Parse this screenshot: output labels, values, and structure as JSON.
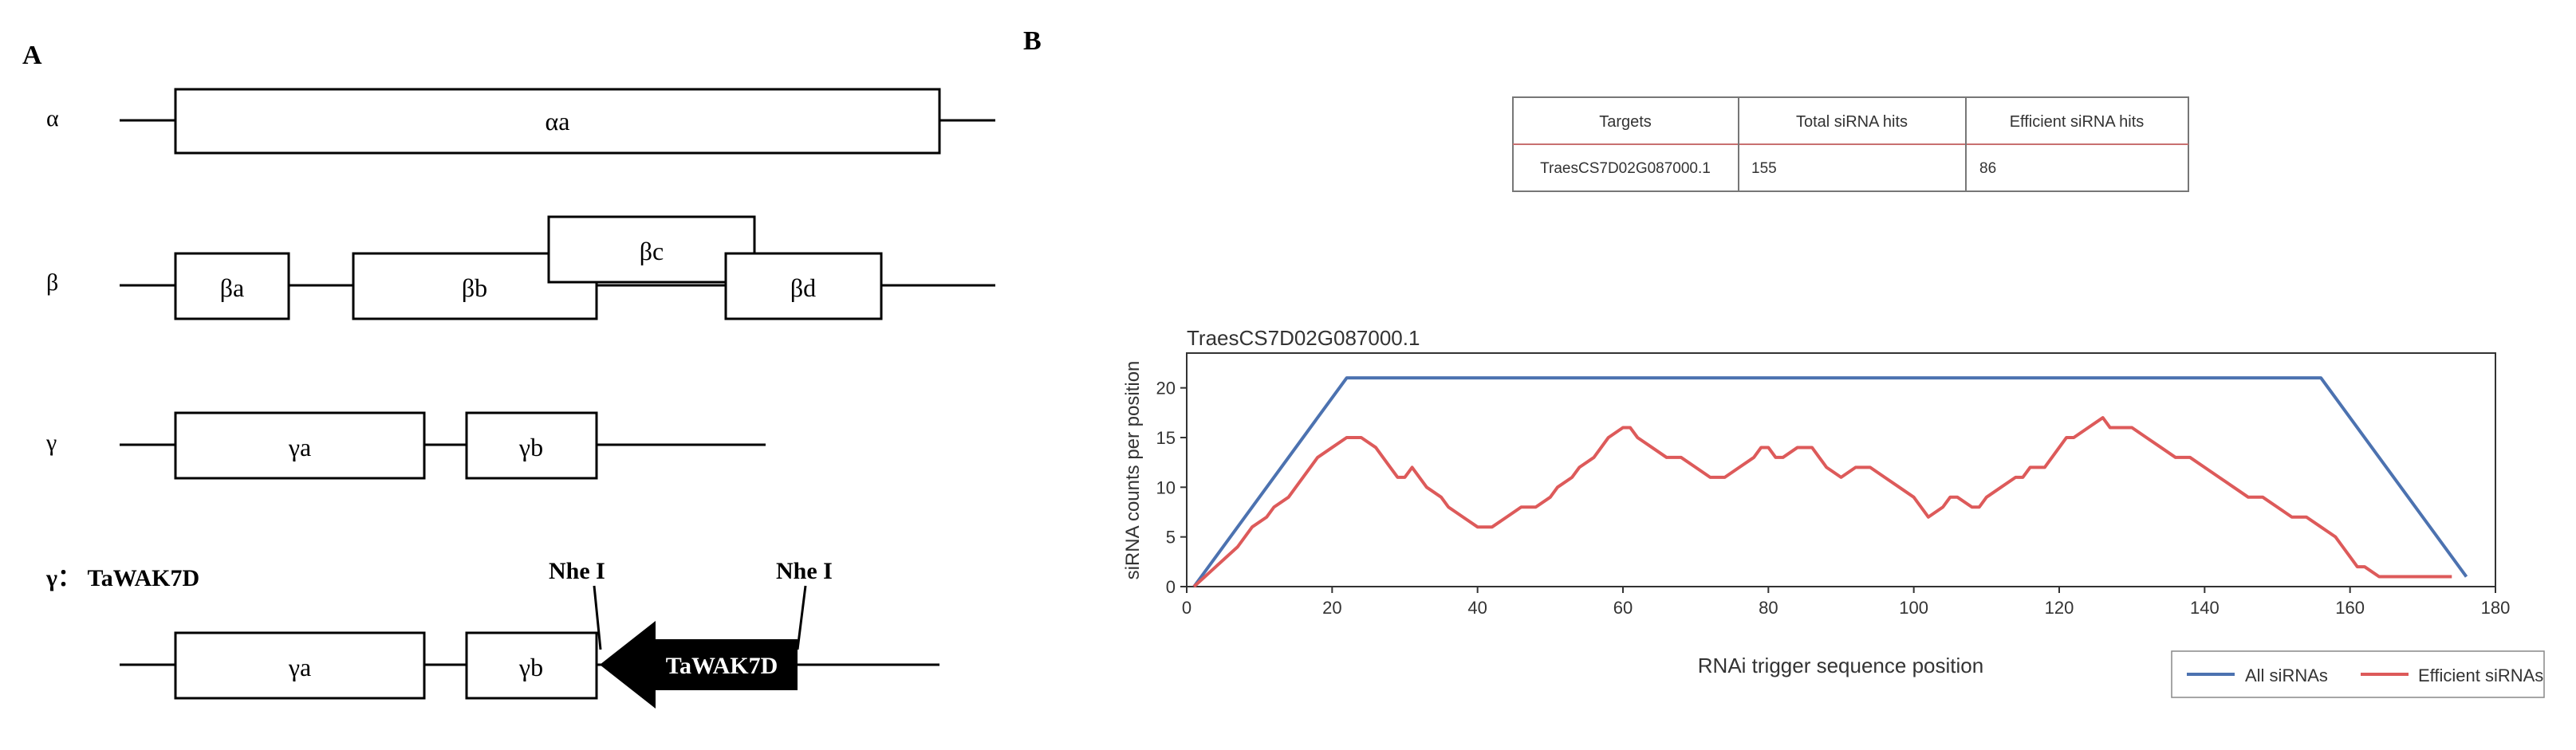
{
  "panel_a": {
    "label": "A",
    "rows": [
      {
        "name": "α",
        "boxes": [
          "αa"
        ]
      },
      {
        "name": "β",
        "boxes": [
          "βa",
          "βb",
          "βc",
          "βd"
        ]
      },
      {
        "name": "γ",
        "boxes": [
          "γa",
          "γb"
        ]
      },
      {
        "name": "γ： TaWAK7D",
        "boxes": [
          "γa",
          "γb"
        ]
      }
    ],
    "site_label_1": "Nhe I",
    "site_label_2": "Nhe I",
    "arrow_label": "TaWAK7D"
  },
  "panel_b": {
    "label": "B",
    "table": {
      "headers": [
        "Targets",
        "Total siRNA hits",
        "Efficient siRNA hits"
      ],
      "rows": [
        [
          "TraesCS7D02G087000.1",
          "155",
          "86"
        ]
      ]
    }
  },
  "chart_data": {
    "type": "line",
    "title": "TraesCS7D02G087000.1",
    "xlabel": "RNAi trigger sequence position",
    "ylabel": "siRNA counts per position",
    "xlim": [
      0,
      180
    ],
    "ylim": [
      0,
      23.5
    ],
    "xticks": [
      0,
      20,
      40,
      60,
      80,
      100,
      120,
      140,
      160,
      180
    ],
    "yticks": [
      0,
      5,
      10,
      15,
      20
    ],
    "grid": false,
    "legend_position": "bottom-right",
    "series": [
      {
        "name": "All siRNAs",
        "color": "#4c72b0",
        "x": [
          1,
          22,
          156,
          176
        ],
        "y": [
          0,
          21,
          21,
          1
        ]
      },
      {
        "name": "Efficient siRNAs",
        "color": "#dd5a5a",
        "x": [
          1,
          4,
          7,
          9,
          11,
          12,
          14,
          15,
          17,
          18,
          20,
          22,
          24,
          26,
          28,
          29,
          30,
          31,
          33,
          35,
          36,
          38,
          40,
          42,
          44,
          46,
          48,
          50,
          51,
          53,
          54,
          56,
          57,
          58,
          60,
          61,
          62,
          64,
          66,
          68,
          70,
          72,
          74,
          76,
          78,
          79,
          80,
          81,
          82,
          84,
          86,
          87,
          88,
          90,
          92,
          94,
          96,
          98,
          100,
          101,
          102,
          104,
          105,
          106,
          108,
          109,
          110,
          112,
          114,
          115,
          116,
          118,
          119,
          120,
          121,
          122,
          124,
          126,
          127,
          128,
          129,
          130,
          132,
          134,
          136,
          138,
          140,
          142,
          144,
          146,
          148,
          150,
          152,
          154,
          156,
          158,
          159,
          160,
          161,
          162,
          164,
          166,
          168,
          170,
          172,
          174
        ],
        "y": [
          0,
          2,
          4,
          6,
          7,
          8,
          9,
          10,
          12,
          13,
          14,
          15,
          15,
          14,
          12,
          11,
          11,
          12,
          10,
          9,
          8,
          7,
          6,
          6,
          7,
          8,
          8,
          9,
          10,
          11,
          12,
          13,
          14,
          15,
          16,
          16,
          15,
          14,
          13,
          13,
          12,
          11,
          11,
          12,
          13,
          14,
          14,
          13,
          13,
          14,
          14,
          13,
          12,
          11,
          12,
          12,
          11,
          10,
          9,
          8,
          7,
          8,
          9,
          9,
          8,
          8,
          9,
          10,
          11,
          11,
          12,
          12,
          13,
          14,
          15,
          15,
          16,
          17,
          16,
          16,
          16,
          16,
          15,
          14,
          13,
          13,
          12,
          11,
          10,
          9,
          9,
          8,
          7,
          7,
          6,
          5,
          4,
          3,
          2,
          2,
          1,
          1,
          1,
          1,
          1,
          1
        ]
      }
    ]
  }
}
